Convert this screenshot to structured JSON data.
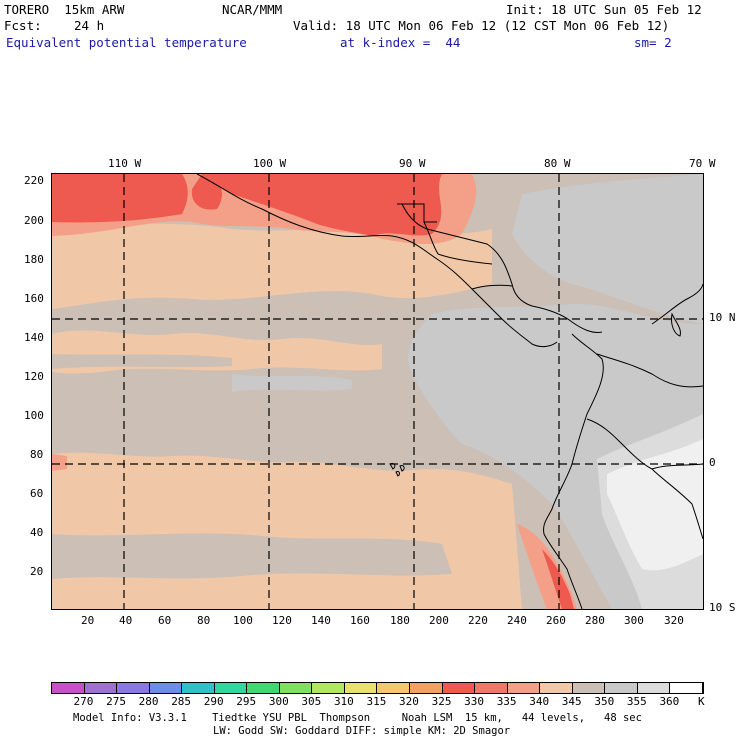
{
  "header": {
    "model": "TORERO  15km ARW",
    "org": "NCAR/MMM",
    "init": "Init: 18 UTC Sun 05 Feb 12",
    "fcst_label": "Fcst:",
    "fcst_value": "24 h",
    "valid": "Valid: 18 UTC Mon 06 Feb 12 (12 CST Mon 06 Feb 12)",
    "field": "Equivalent potential temperature",
    "level": "at k-index =  44",
    "smoothing": "sm= 2"
  },
  "map": {
    "lon_labels": [
      "110 W",
      "100 W",
      "90 W",
      "80 W",
      "70 W"
    ],
    "lat_labels": [
      "10 N",
      "0",
      "10 S"
    ],
    "y_ticks": [
      "220",
      "200",
      "180",
      "160",
      "140",
      "120",
      "100",
      "80",
      "60",
      "40",
      "20"
    ],
    "x_ticks": [
      "20",
      "40",
      "60",
      "80",
      "100",
      "120",
      "140",
      "160",
      "180",
      "200",
      "220",
      "240",
      "260",
      "280",
      "300",
      "320"
    ],
    "colors": {
      "c345": "#cbbfb6",
      "c350": "#c9c9c9",
      "c340": "#f0c8a8",
      "c335": "#f4a088",
      "c330": "#ef5a50",
      "c360": "#f0f0f0",
      "c355": "#dcdcdc"
    }
  },
  "colorbar": {
    "levels": [
      "270",
      "275",
      "280",
      "285",
      "290",
      "295",
      "300",
      "305",
      "310",
      "315",
      "320",
      "325",
      "330",
      "335",
      "340",
      "345",
      "350",
      "355",
      "360"
    ],
    "unit": "K",
    "colors": [
      "#c850c8",
      "#a070d0",
      "#8878e0",
      "#6c8ee8",
      "#30c0c8",
      "#30d8a0",
      "#40d870",
      "#80e060",
      "#b0e860",
      "#e8e070",
      "#f4c870",
      "#f4a060",
      "#ef5a50",
      "#f07868",
      "#f4a088",
      "#f0c8a8",
      "#cbbfb6",
      "#c9c9c9",
      "#dcdcdc",
      "#ffffff"
    ]
  },
  "footer": {
    "line1": "Model Info: V3.3.1    Tiedtke YSU PBL  Thompson     Noah LSM  15 km,   44 levels,   48 sec",
    "line2": "LW: Godd SW: Goddard DIFF: simple KM: 2D Smagor"
  }
}
